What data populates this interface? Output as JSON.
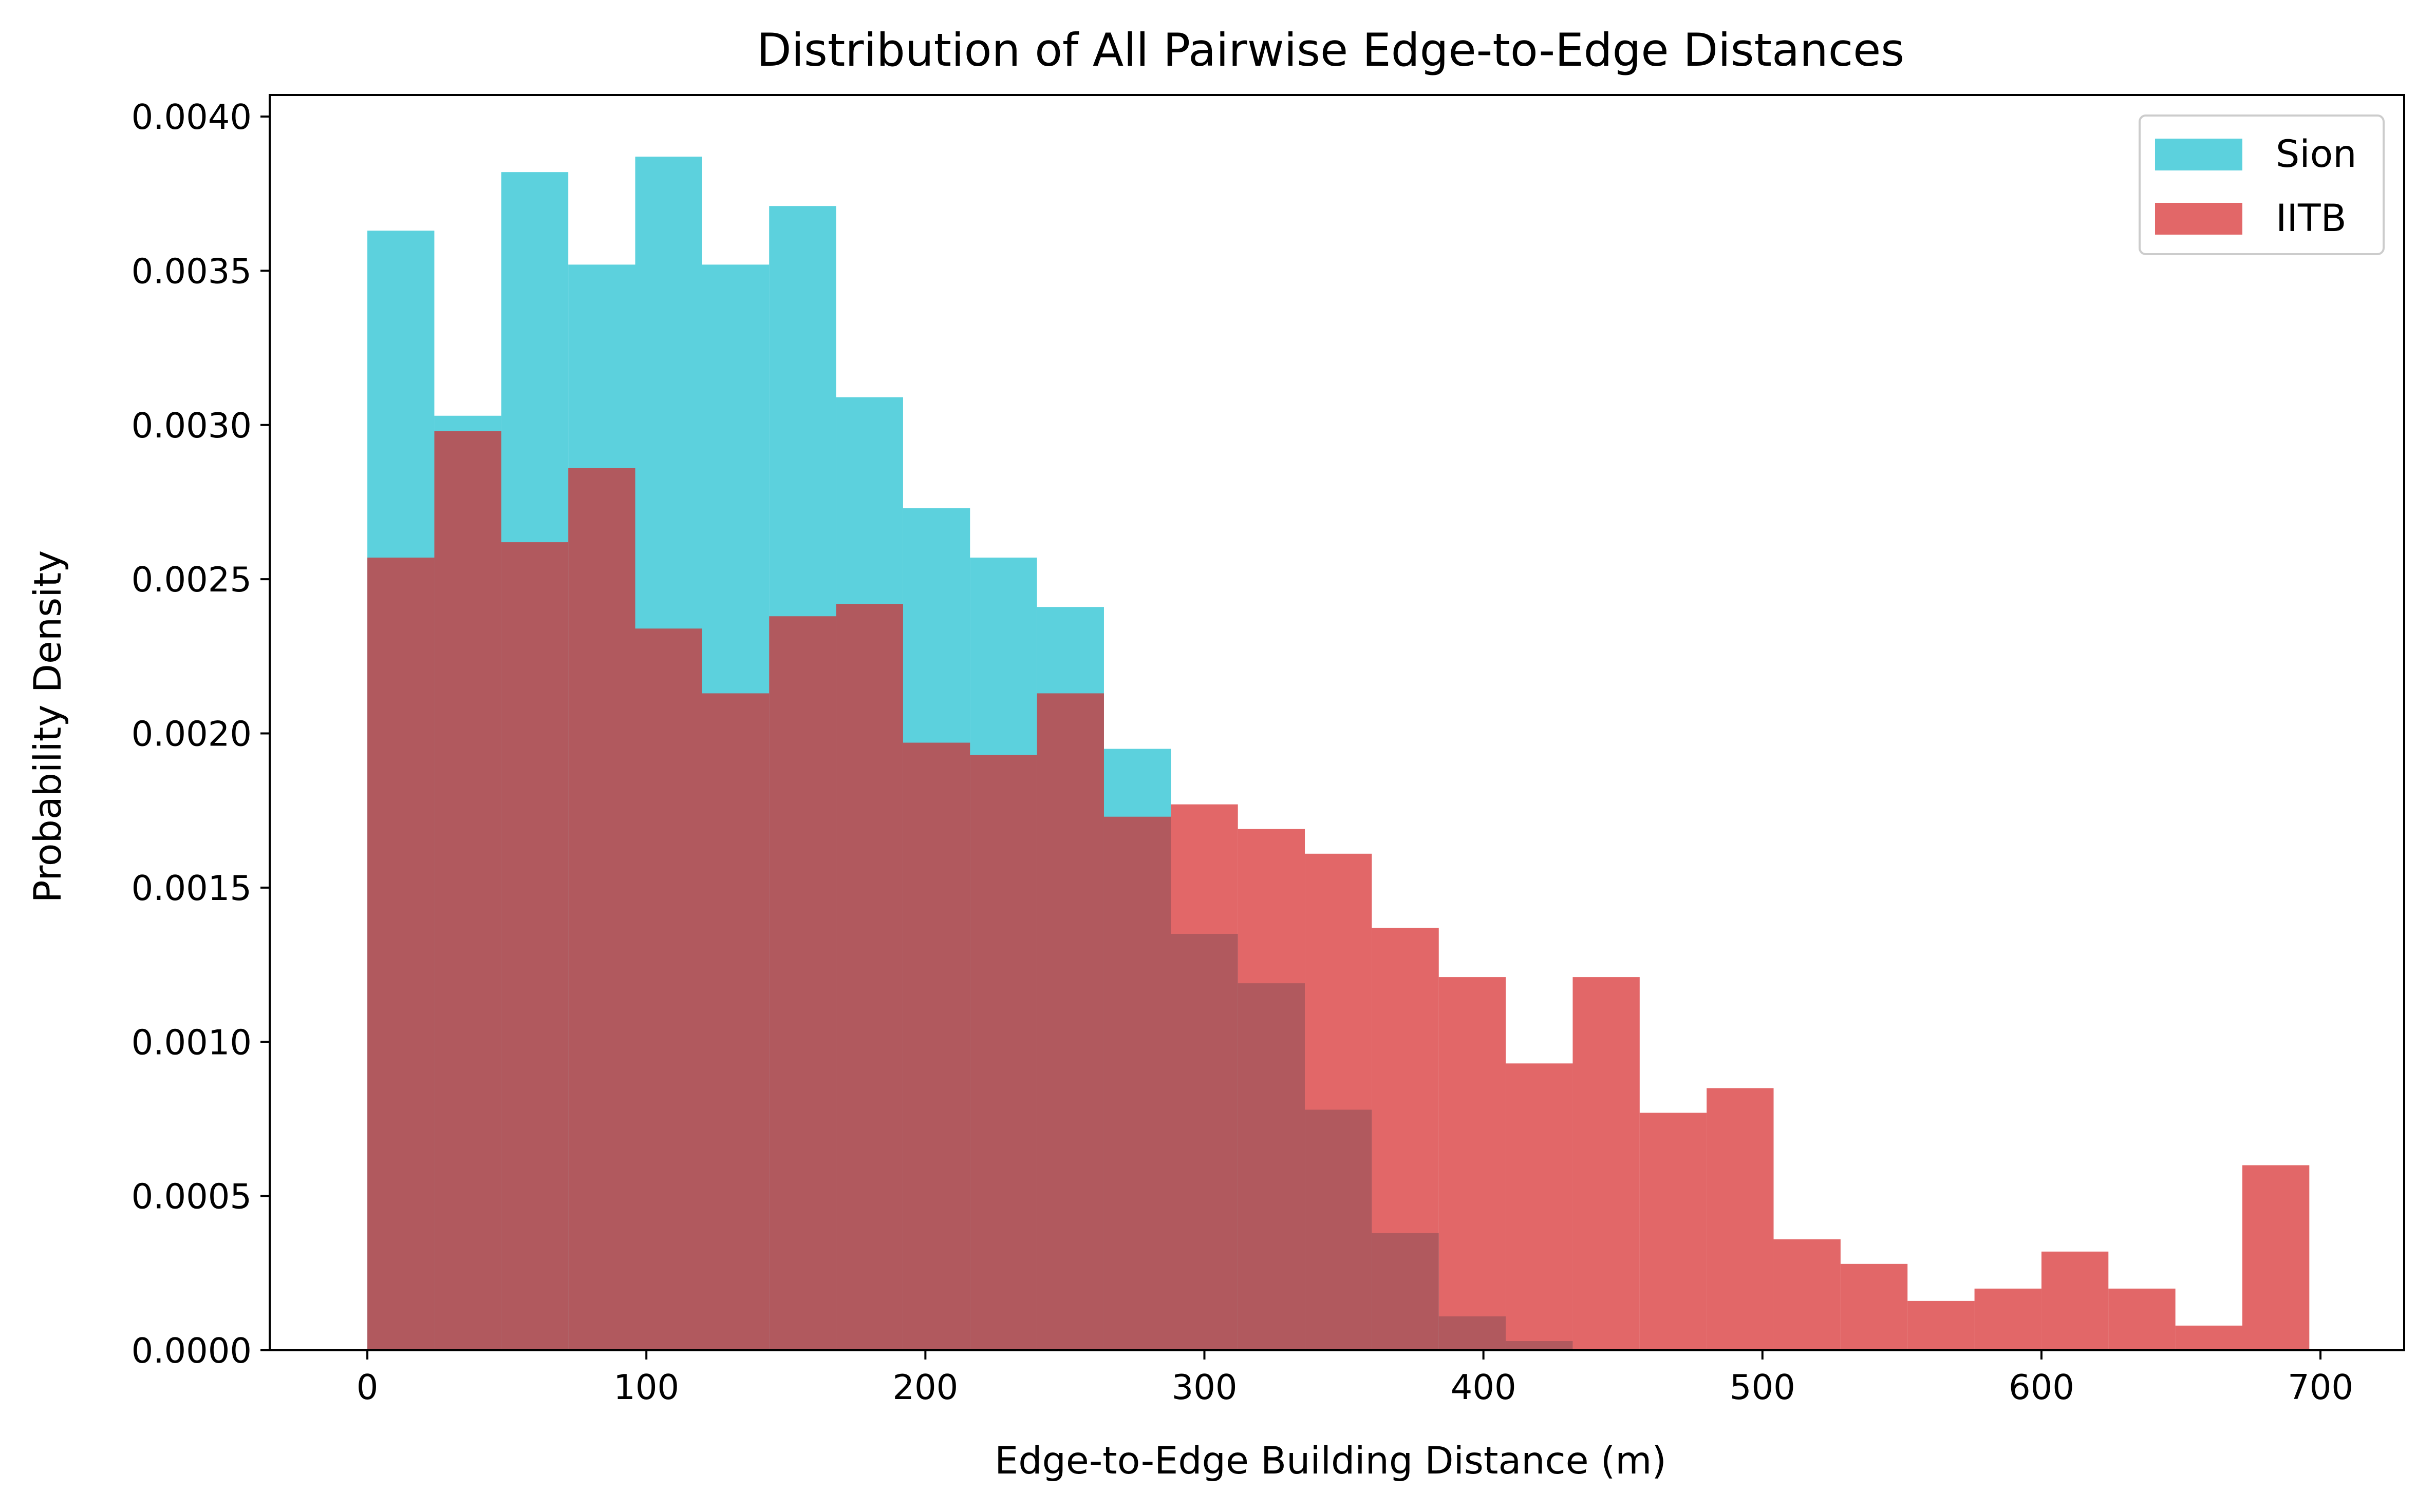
{
  "chart_data": {
    "type": "histogram",
    "title": "Distribution of All Pairwise Edge-to-Edge Distances",
    "xlabel": "Edge-to-Edge Building Distance (m)",
    "ylabel": "Probability Density",
    "xlim": [
      -35,
      730
    ],
    "ylim": [
      0,
      0.00407
    ],
    "xticks": [
      0,
      100,
      200,
      300,
      400,
      500,
      600,
      700
    ],
    "xtick_labels": [
      "0",
      "100",
      "200",
      "300",
      "400",
      "500",
      "600",
      "700"
    ],
    "yticks": [
      0,
      0.0005,
      0.001,
      0.0015,
      0.002,
      0.0025,
      0.003,
      0.0035,
      0.004
    ],
    "ytick_labels": [
      "0.0000",
      "0.0005",
      "0.0010",
      "0.0015",
      "0.0020",
      "0.0025",
      "0.0030",
      "0.0035",
      "0.0040"
    ],
    "grid": false,
    "legend_position": "top-right",
    "series": [
      {
        "name": "Sion",
        "color": "#17becf",
        "opacity": 0.7,
        "bin_edges": [
          0,
          24,
          48,
          72,
          96,
          120,
          144,
          168,
          192,
          216,
          240,
          264,
          288,
          312,
          336,
          360,
          384,
          408,
          432
        ],
        "values": [
          0.00363,
          0.00303,
          0.00382,
          0.00352,
          0.00387,
          0.00352,
          0.00371,
          0.00309,
          0.00273,
          0.00257,
          0.00241,
          0.00195,
          0.00135,
          0.00119,
          0.00078,
          0.00038,
          0.00011,
          3e-05
        ]
      },
      {
        "name": "IITB",
        "color": "#d62728",
        "opacity": 0.7,
        "bin_edges": [
          0,
          24,
          48,
          72,
          96,
          120,
          144,
          168,
          192,
          216,
          240,
          264,
          288,
          312,
          336,
          360,
          384,
          408,
          432,
          456,
          480,
          504,
          528,
          552,
          576,
          600,
          624,
          648,
          672,
          696
        ],
        "values": [
          0.00257,
          0.00298,
          0.00262,
          0.00286,
          0.00234,
          0.00213,
          0.00238,
          0.00242,
          0.00197,
          0.00193,
          0.00213,
          0.00173,
          0.00177,
          0.00169,
          0.00161,
          0.00137,
          0.00121,
          0.00093,
          0.00121,
          0.00077,
          0.00085,
          0.00036,
          0.00028,
          0.00016,
          0.0002,
          0.00032,
          0.0002,
          8e-05,
          0.0006
        ]
      }
    ]
  }
}
